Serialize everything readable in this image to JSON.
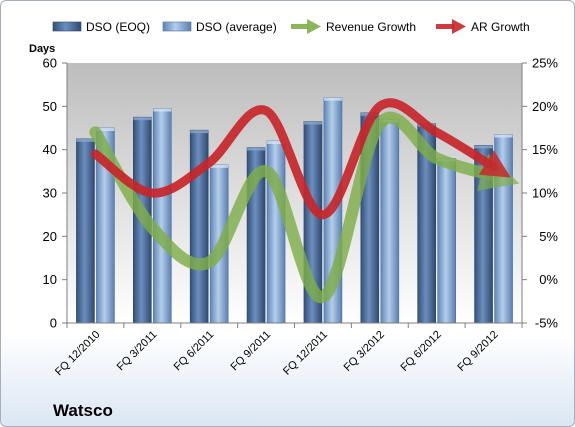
{
  "company": "Watsco",
  "chart_data": {
    "type": "bar",
    "categories": [
      "FQ 12/2010",
      "FQ 3/2011",
      "FQ 6/2011",
      "FQ 9/2011",
      "FQ 12/2011",
      "FQ 3/2012",
      "FQ 6/2012",
      "FQ 9/2012"
    ],
    "series": [
      {
        "name": "DSO (EOQ)",
        "type": "bar",
        "axis": "left",
        "values": [
          42.5,
          47.5,
          44.5,
          40.5,
          46.5,
          48.5,
          46,
          41
        ],
        "color": "#4a6e9f"
      },
      {
        "name": "DSO (average)",
        "type": "bar",
        "axis": "left",
        "values": [
          45,
          49.5,
          36.5,
          42,
          52,
          47,
          38,
          43.5
        ],
        "color": "#87a9d4"
      },
      {
        "name": "Revenue Growth",
        "type": "line",
        "axis": "right",
        "values": [
          17,
          6,
          2,
          12.5,
          -2,
          18,
          14,
          12
        ],
        "color": "#7fae4a"
      },
      {
        "name": "AR Growth",
        "type": "line",
        "axis": "right",
        "values": [
          14.5,
          10,
          13.5,
          19.5,
          7.5,
          20,
          17,
          13
        ],
        "color": "#c7262a"
      }
    ],
    "ylabel": "Days",
    "ylim": [
      0,
      60
    ],
    "yticks": [
      0,
      10,
      20,
      30,
      40,
      50,
      60
    ],
    "y2lim": [
      -5,
      25
    ],
    "y2ticks": [
      "-5%",
      "0%",
      "5%",
      "10%",
      "15%",
      "20%",
      "25%"
    ],
    "grid": false,
    "legend": "top"
  }
}
